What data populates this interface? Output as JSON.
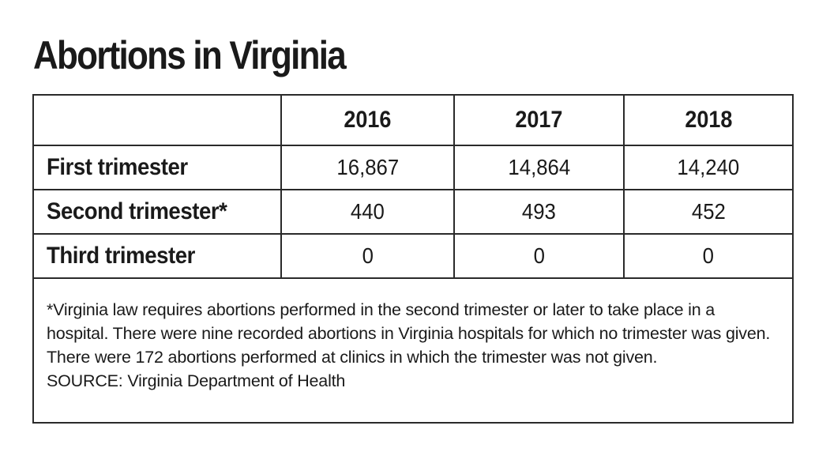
{
  "chart_data": {
    "type": "table",
    "title": "Abortions in Virginia",
    "columns": [
      "",
      "2016",
      "2017",
      "2018"
    ],
    "rows": [
      {
        "label": "First trimester",
        "values": [
          "16,867",
          "14,864",
          "14,240"
        ]
      },
      {
        "label": "Second trimester*",
        "values": [
          "440",
          "493",
          "452"
        ]
      },
      {
        "label": "Third trimester",
        "values": [
          "0",
          "0",
          "0"
        ]
      }
    ],
    "footnote": "*Virginia law requires abortions performed in the second trimester or later to take place in a hospital. There were nine recorded abortions in Virginia hospitals for which no trimester was given. There were 172 abortions performed at clinics in which the trimester was not given.",
    "source": "SOURCE: Virginia Department of Health"
  },
  "colors": {
    "text": "#1a1a1a",
    "border": "#2a2a2a",
    "background": "#ffffff"
  }
}
